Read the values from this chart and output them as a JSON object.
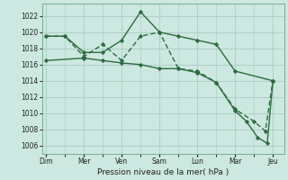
{
  "xlabel": "Pression niveau de la mer( hPa )",
  "ylim": [
    1005,
    1023.5
  ],
  "yticks": [
    1006,
    1008,
    1010,
    1012,
    1014,
    1016,
    1018,
    1020,
    1022
  ],
  "x_labels": [
    "Dim",
    "Mer",
    "Ven",
    "Sam",
    "Lun",
    "Mar",
    "Jeu"
  ],
  "x_positions": [
    0,
    1,
    2,
    3,
    4,
    5,
    6
  ],
  "xlim": [
    -0.1,
    6.3
  ],
  "background_color": "#cce8e0",
  "grid_color": "#aaccC4",
  "line_color": "#2d6a3f",
  "line1_x": [
    0,
    0.5,
    1,
    1.5,
    2,
    2.5,
    3,
    3.5,
    4,
    4.5,
    5,
    6
  ],
  "line1_y": [
    1019.5,
    1019.5,
    1017.5,
    1017.5,
    1019.0,
    1022.5,
    1020.0,
    1019.5,
    1019.0,
    1018.5,
    1015.2,
    1014.0
  ],
  "line2_x": [
    0,
    0.5,
    1,
    1.5,
    2,
    2.5,
    3,
    3.5,
    4,
    4.5,
    5,
    5.5,
    5.8,
    6
  ],
  "line2_y": [
    1019.5,
    1019.5,
    1017.0,
    1018.5,
    1016.5,
    1019.5,
    1020.0,
    1015.5,
    1015.2,
    1013.8,
    1010.5,
    1009.0,
    1007.8,
    1014.0
  ],
  "line3_x": [
    0,
    1,
    1.5,
    2,
    2.5,
    3,
    3.5,
    4,
    4.5,
    5,
    5.3,
    5.6,
    5.85,
    6
  ],
  "line3_y": [
    1016.5,
    1016.8,
    1016.5,
    1016.2,
    1016.0,
    1015.5,
    1015.5,
    1015.0,
    1013.8,
    1010.3,
    1009.0,
    1007.0,
    1006.3,
    1014.0
  ],
  "ylabel_fontsize": 5.5,
  "xlabel_fontsize": 6.5,
  "tick_fontsize": 5.5,
  "linewidth": 1.0,
  "markersize": 2.2
}
